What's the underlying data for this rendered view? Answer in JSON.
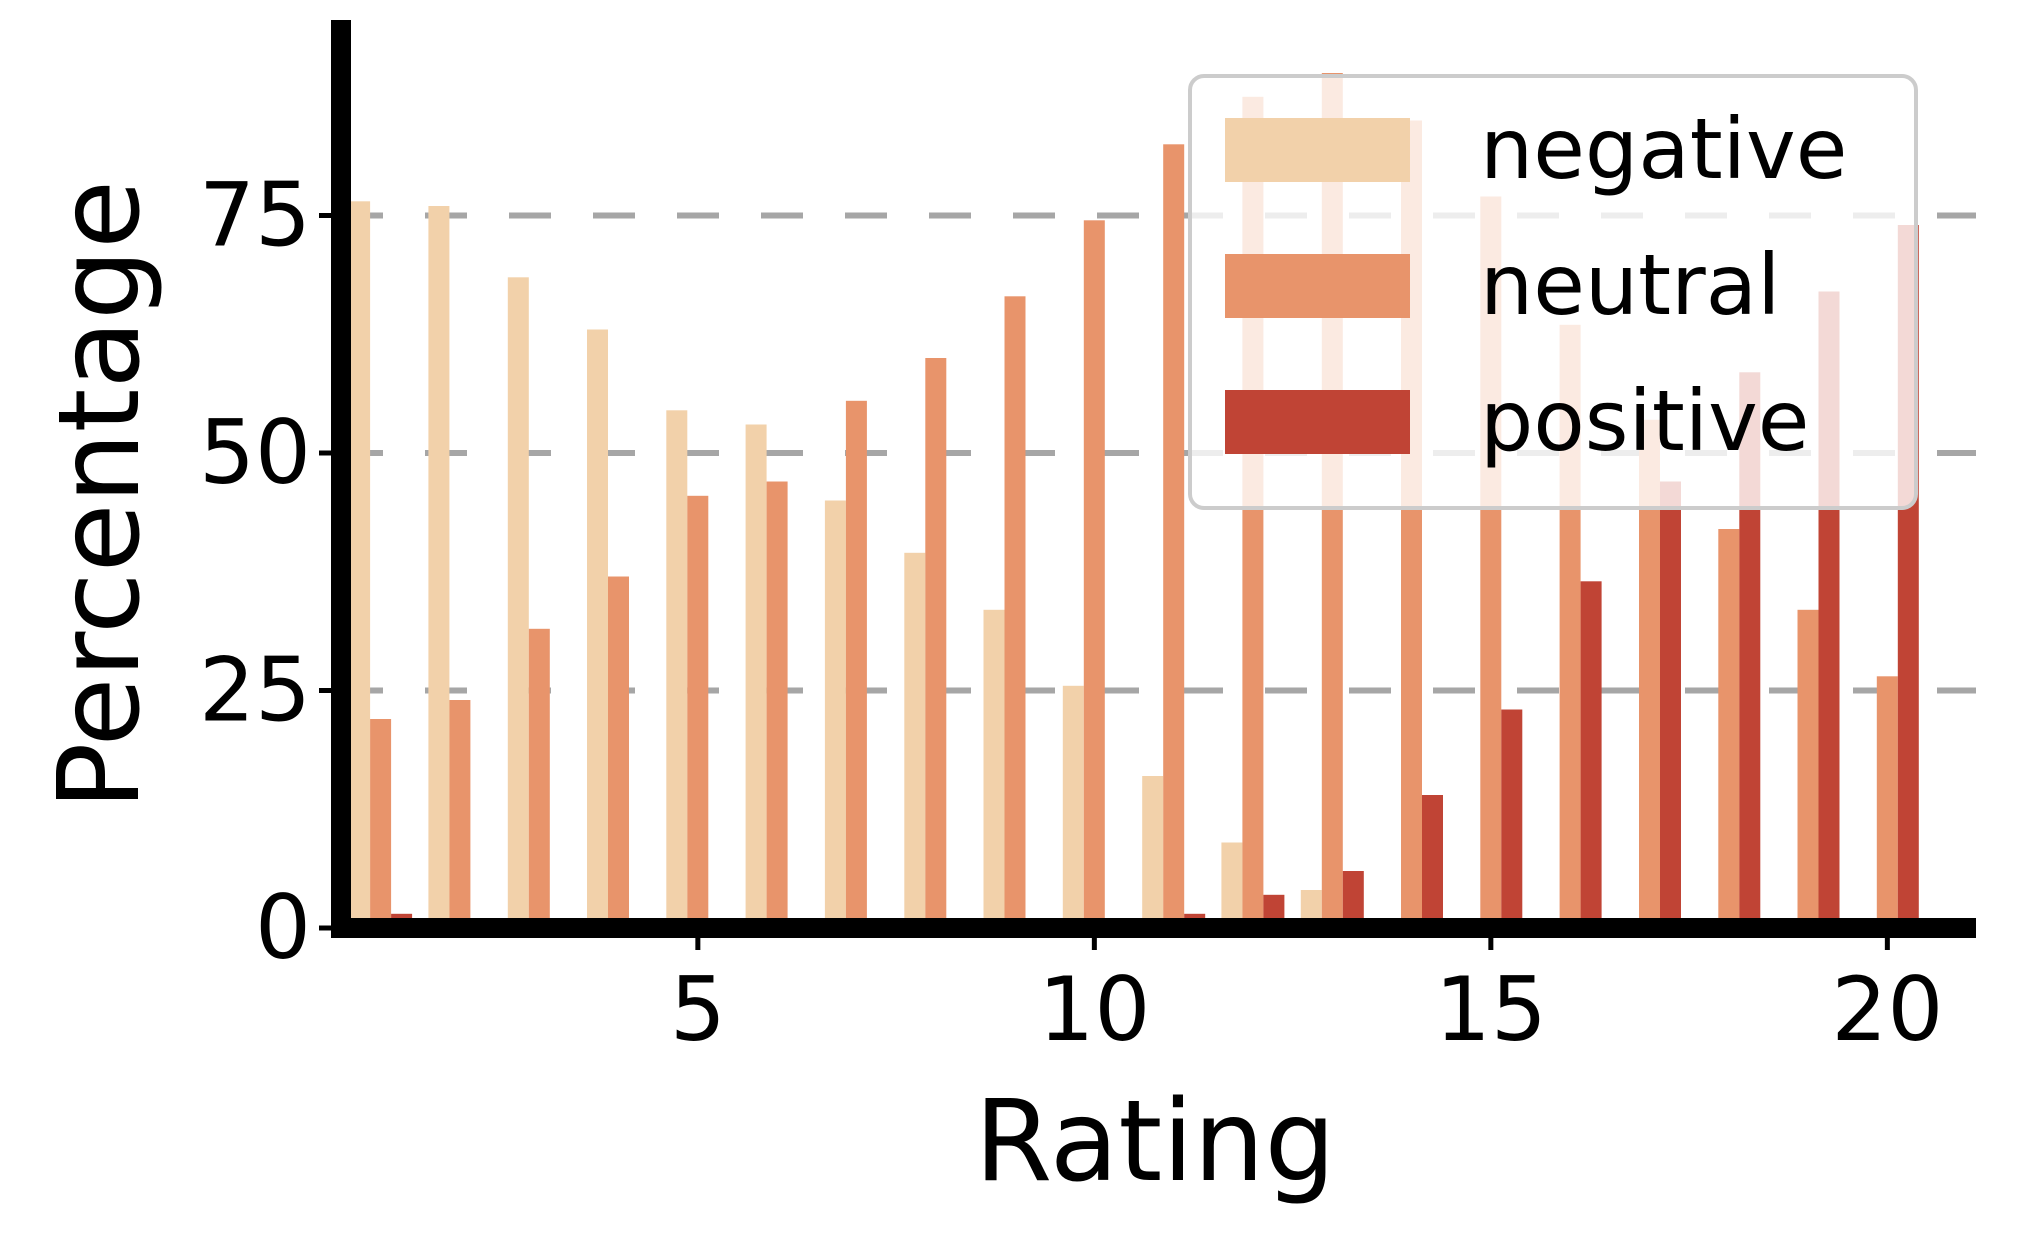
{
  "chart_data": {
    "type": "bar",
    "title": "",
    "xlabel": "Rating",
    "ylabel": "Percentage",
    "categories": [
      1,
      2,
      3,
      4,
      5,
      6,
      7,
      8,
      9,
      10,
      11,
      12,
      13,
      14,
      15,
      16,
      17,
      18,
      19,
      20
    ],
    "xticks": [
      "5",
      "10",
      "15",
      "20"
    ],
    "yticks": [
      "0",
      "25",
      "50",
      "75"
    ],
    "ylim": [
      0,
      95
    ],
    "grid": "horizontal dashed",
    "legend_position": "top-right",
    "series": [
      {
        "name": "negative",
        "color": "#f2d1aa",
        "values": [
          76.5,
          76,
          68.5,
          63,
          54.5,
          53,
          45,
          39.5,
          33.5,
          25.5,
          16,
          9,
          4,
          1,
          0,
          0,
          0,
          0,
          0,
          0
        ]
      },
      {
        "name": "neutral",
        "color": "#e8946b",
        "values": [
          22,
          24,
          31.5,
          37,
          45.5,
          47,
          55.5,
          60,
          66.5,
          74.5,
          82.5,
          87.5,
          90,
          85,
          77,
          63.5,
          53.5,
          42,
          33.5,
          26.5
        ]
      },
      {
        "name": "positive",
        "color": "#c04435",
        "values": [
          1.5,
          0,
          0,
          0,
          0,
          0,
          0,
          0,
          0,
          0,
          1.5,
          3.5,
          6,
          14,
          23,
          36.5,
          47,
          58.5,
          67,
          74
        ]
      }
    ]
  }
}
